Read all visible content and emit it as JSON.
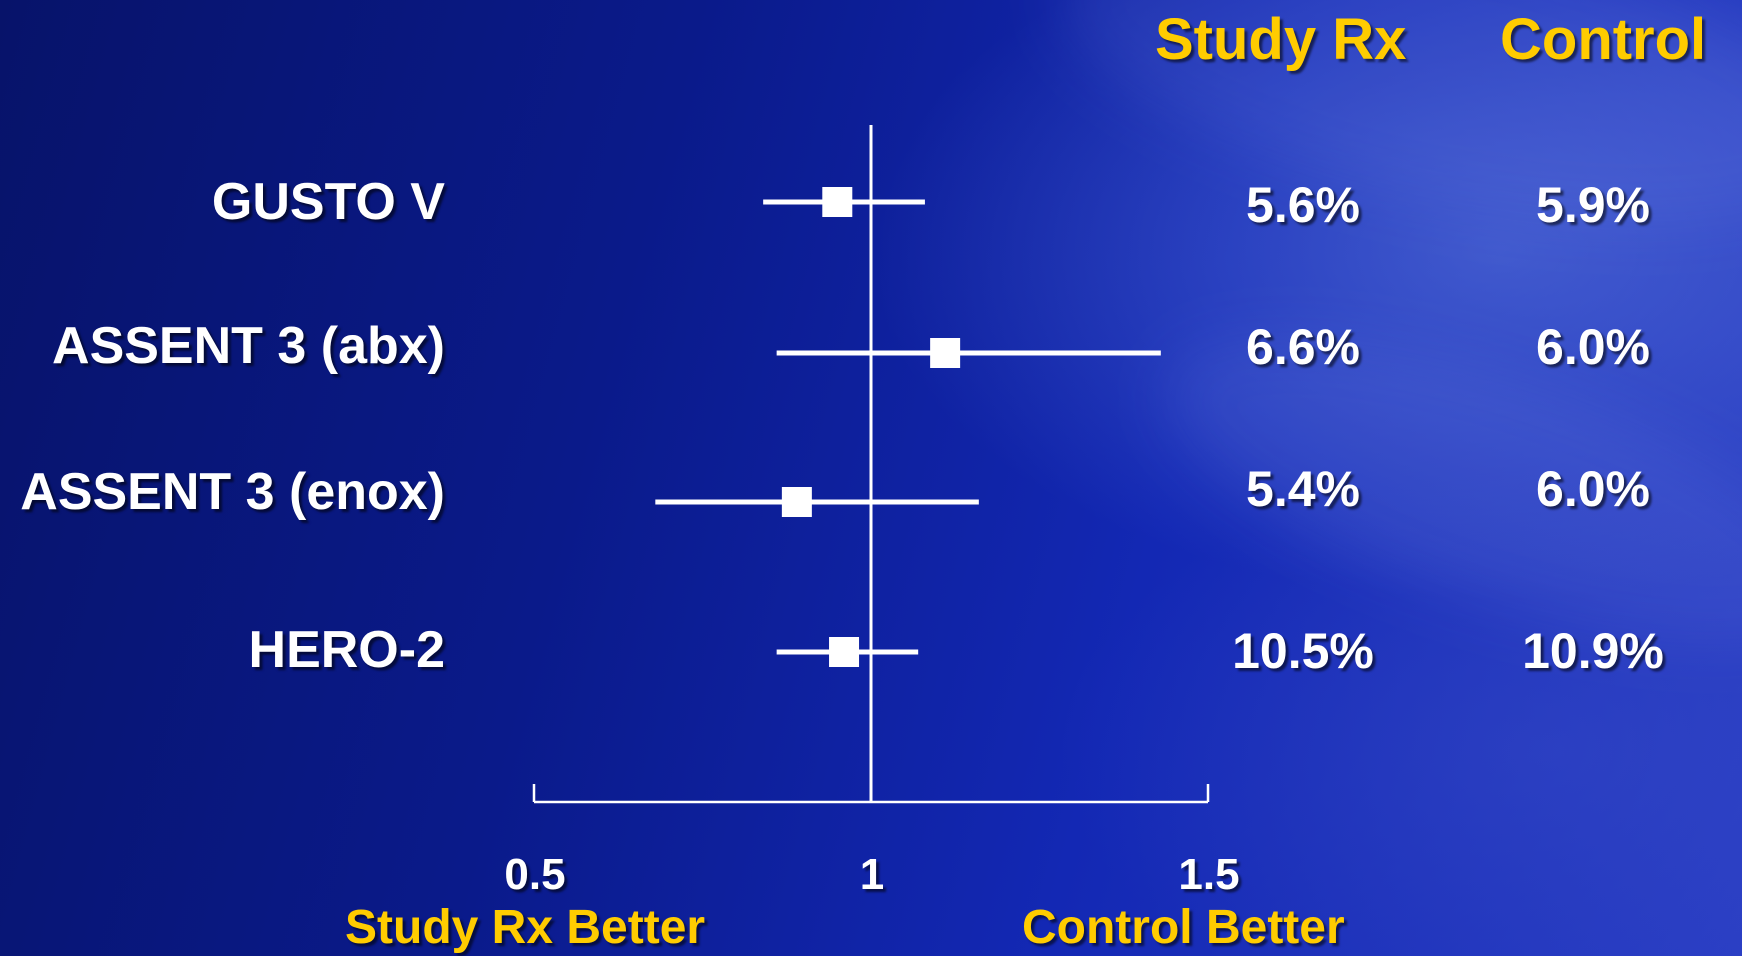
{
  "chart_data": {
    "type": "forest",
    "title": "",
    "column_headers": {
      "study_rx": "Study Rx",
      "control": "Control"
    },
    "studies": [
      {
        "name": "GUSTO V",
        "estimate": 0.95,
        "ci": [
          0.84,
          1.08
        ],
        "study_rx": "5.6%",
        "control": "5.9%"
      },
      {
        "name": "ASSENT 3 (abx)",
        "estimate": 1.11,
        "ci": [
          0.86,
          1.43
        ],
        "study_rx": "6.6%",
        "control": "6.0%"
      },
      {
        "name": "ASSENT 3 (enox)",
        "estimate": 0.89,
        "ci": [
          0.68,
          1.16
        ],
        "study_rx": "5.4%",
        "control": "6.0%"
      },
      {
        "name": "HERO-2",
        "estimate": 0.96,
        "ci": [
          0.86,
          1.07
        ],
        "study_rx": "10.5%",
        "control": "10.9%"
      }
    ],
    "x_ticks": [
      "0.5",
      "1",
      "1.5"
    ],
    "xlim": [
      0.5,
      1.5
    ],
    "reference_line": 1,
    "x_annotations": {
      "left": "Study Rx Better",
      "right": "Control Better"
    },
    "colors": {
      "marker": "#ffffff",
      "header": "#ffcc00",
      "label": "#ffffff",
      "background": "#0a1a8a"
    }
  }
}
